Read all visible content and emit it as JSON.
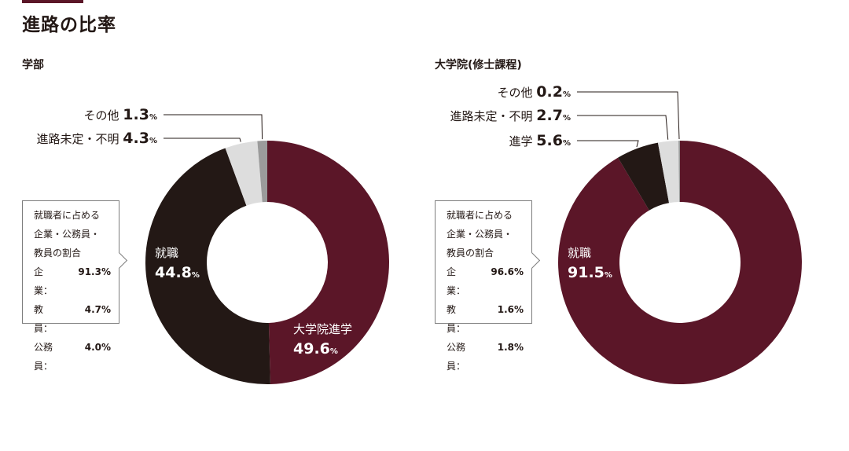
{
  "page_title": "進路の比率",
  "chart_data": [
    {
      "type": "pie",
      "title": "学部",
      "slices": [
        {
          "label": "大学院進学",
          "value": 49.6,
          "color": "#5b1628"
        },
        {
          "label": "就職",
          "value": 44.8,
          "color": "#231815"
        },
        {
          "label": "進路未定・不明",
          "value": 4.3,
          "color": "#dddddd"
        },
        {
          "label": "その他",
          "value": 1.3,
          "color": "#9b9b9b"
        }
      ],
      "unit": "%",
      "breakdown": {
        "title_lines": [
          "就職者に占める",
          "企業・公務員・",
          "教員の割合"
        ],
        "rows": [
          {
            "label": "企　業：",
            "value": "91.3%"
          },
          {
            "label": "教　員：",
            "value": "4.7%"
          },
          {
            "label": "公務員：",
            "value": "4.0%"
          }
        ]
      }
    },
    {
      "type": "pie",
      "title": "大学院(修士課程)",
      "slices": [
        {
          "label": "就職",
          "value": 91.5,
          "color": "#5b1628"
        },
        {
          "label": "進学",
          "value": 5.6,
          "color": "#231815"
        },
        {
          "label": "進路未定・不明",
          "value": 2.7,
          "color": "#dddddd"
        },
        {
          "label": "その他",
          "value": 0.2,
          "color": "#9b9b9b"
        }
      ],
      "unit": "%",
      "breakdown": {
        "title_lines": [
          "就職者に占める",
          "企業・公務員・",
          "教員の割合"
        ],
        "rows": [
          {
            "label": "企　業：",
            "value": "96.6%"
          },
          {
            "label": "教　員：",
            "value": "1.6%"
          },
          {
            "label": "公務員：",
            "value": "1.8%"
          }
        ]
      }
    }
  ]
}
